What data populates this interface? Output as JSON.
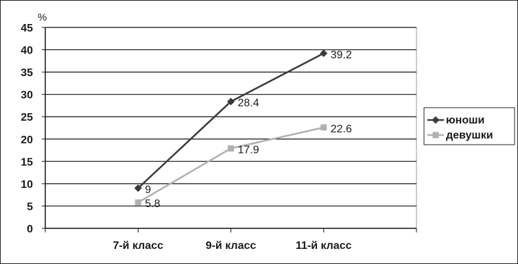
{
  "chart_data": {
    "type": "line",
    "ylabel": "%",
    "ylim": [
      0,
      45
    ],
    "y_ticks": [
      "0",
      "5",
      "10",
      "15",
      "20",
      "25",
      "30",
      "35",
      "40",
      "45"
    ],
    "categories": [
      "7-й класс",
      "9-й класс",
      "11-й класс"
    ],
    "series": [
      {
        "name": "юноши",
        "values": [
          9,
          28.4,
          39.2
        ],
        "labels": [
          "9",
          "28.4",
          "39.2"
        ],
        "color": "#3a3a3a",
        "marker": "diamond"
      },
      {
        "name": "девушки",
        "values": [
          5.8,
          17.9,
          22.6
        ],
        "labels": [
          "5.8",
          "17.9",
          "22.6"
        ],
        "color": "#b0b0b0",
        "marker": "square"
      }
    ],
    "grid": true,
    "legend_position": "right"
  }
}
